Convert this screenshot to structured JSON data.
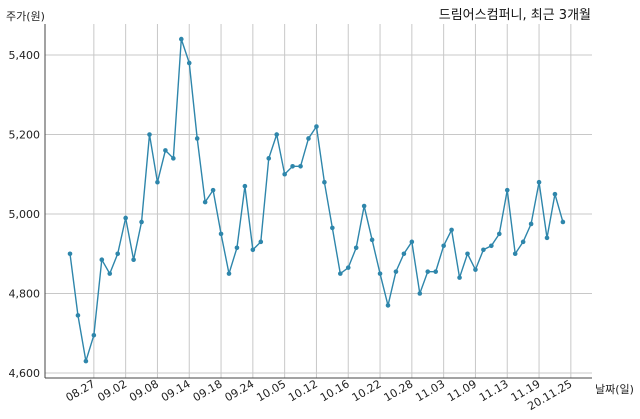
{
  "chart_data": {
    "type": "line",
    "title": "드림어스컴퍼니, 최근 3개월",
    "ylabel": "주가(원)",
    "xlabel": "날짜(일)",
    "ylim": [
      4600,
      5500
    ],
    "yticks": [
      4600,
      4800,
      5000,
      5200,
      5400
    ],
    "ytick_labels": [
      "4,600",
      "4,800",
      "5,000",
      "5,200",
      "5,400"
    ],
    "x_tick_labels": [
      "08.27",
      "09.02",
      "09.08",
      "09.14",
      "09.18",
      "09.24",
      "10.05",
      "10.12",
      "10.16",
      "10.22",
      "10.28",
      "11.03",
      "11.09",
      "11.13",
      "11.19",
      "20.11.25"
    ],
    "x_tick_indices": [
      3,
      7,
      11,
      15,
      19,
      23,
      27,
      31,
      35,
      39,
      43,
      47,
      51,
      55,
      59,
      63
    ],
    "grid": true,
    "line_color": "#2e86ab",
    "series": [
      {
        "values": [
          4900,
          4745,
          4630,
          4695,
          4885,
          4850,
          4900,
          4990,
          4885,
          4980,
          5200,
          5080,
          5160,
          5140,
          5440,
          5380,
          5190,
          5030,
          5060,
          4950,
          4850,
          4915,
          5070,
          4910,
          4930,
          5140,
          5200,
          5100,
          5120,
          5120,
          5190,
          5220,
          5080,
          4965,
          4850,
          4865,
          4915,
          5020,
          4935,
          4850,
          4770,
          4855,
          4900,
          4930,
          4800,
          4855,
          4855,
          4920,
          4960,
          4840,
          4900,
          4860,
          4910,
          4920,
          4950,
          5060,
          4900,
          4930,
          4975,
          5080,
          4940,
          5050,
          4980
        ]
      }
    ]
  }
}
